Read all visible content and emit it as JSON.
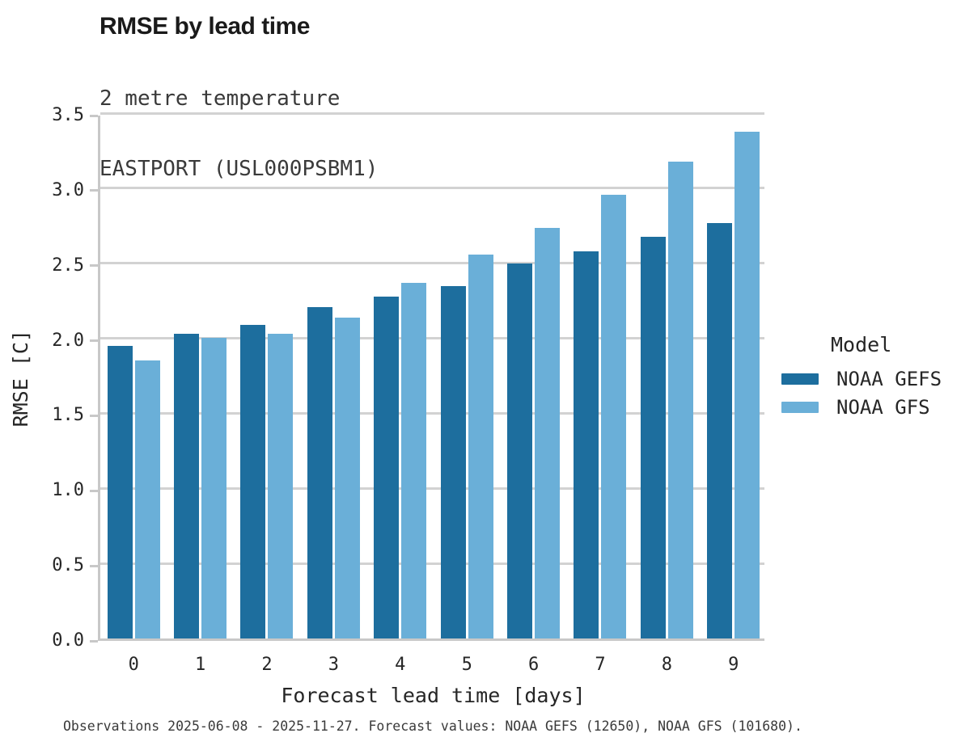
{
  "header": {
    "title": "RMSE by lead time",
    "subtitle_line1": "2 metre temperature",
    "subtitle_line2": "EASTPORT (USL000PSBM1)"
  },
  "chart_data": {
    "type": "bar",
    "title": "RMSE by lead time",
    "subtitle": [
      "2 metre temperature",
      "EASTPORT (USL000PSBM1)"
    ],
    "categories": [
      "0",
      "1",
      "2",
      "3",
      "4",
      "5",
      "6",
      "7",
      "8",
      "9"
    ],
    "series": [
      {
        "name": "NOAA GEFS",
        "color": "#1d6e9e",
        "values": [
          1.96,
          2.04,
          2.1,
          2.22,
          2.29,
          2.36,
          2.51,
          2.59,
          2.69,
          2.78
        ]
      },
      {
        "name": "NOAA GFS",
        "color": "#6aafd8",
        "values": [
          1.86,
          2.01,
          2.04,
          2.15,
          2.38,
          2.57,
          2.75,
          2.97,
          3.19,
          3.39
        ]
      }
    ],
    "xlabel": "Forecast lead time [days]",
    "ylabel": "RMSE [C]",
    "ylim": [
      0,
      3.5
    ],
    "yticks": [
      "0.0",
      "0.5",
      "1.0",
      "1.5",
      "2.0",
      "2.5",
      "3.0",
      "3.5"
    ],
    "grid": "horizontal-only",
    "legend_position": "right-outside"
  },
  "legend": {
    "title": "Model",
    "items": [
      {
        "label": "NOAA GEFS",
        "color": "#1d6e9e"
      },
      {
        "label": "NOAA GFS",
        "color": "#6aafd8"
      }
    ]
  },
  "footer": {
    "text": "Observations 2025-06-08 - 2025-11-27. Forecast values: NOAA GEFS (12650), NOAA GFS (101680)."
  },
  "colors": {
    "series_dark": "#1d6e9e",
    "series_light": "#6aafd8",
    "gridline": "#d2d2d2",
    "spine": "#c8c8c8",
    "text": "#262626",
    "background": "#ffffff"
  }
}
